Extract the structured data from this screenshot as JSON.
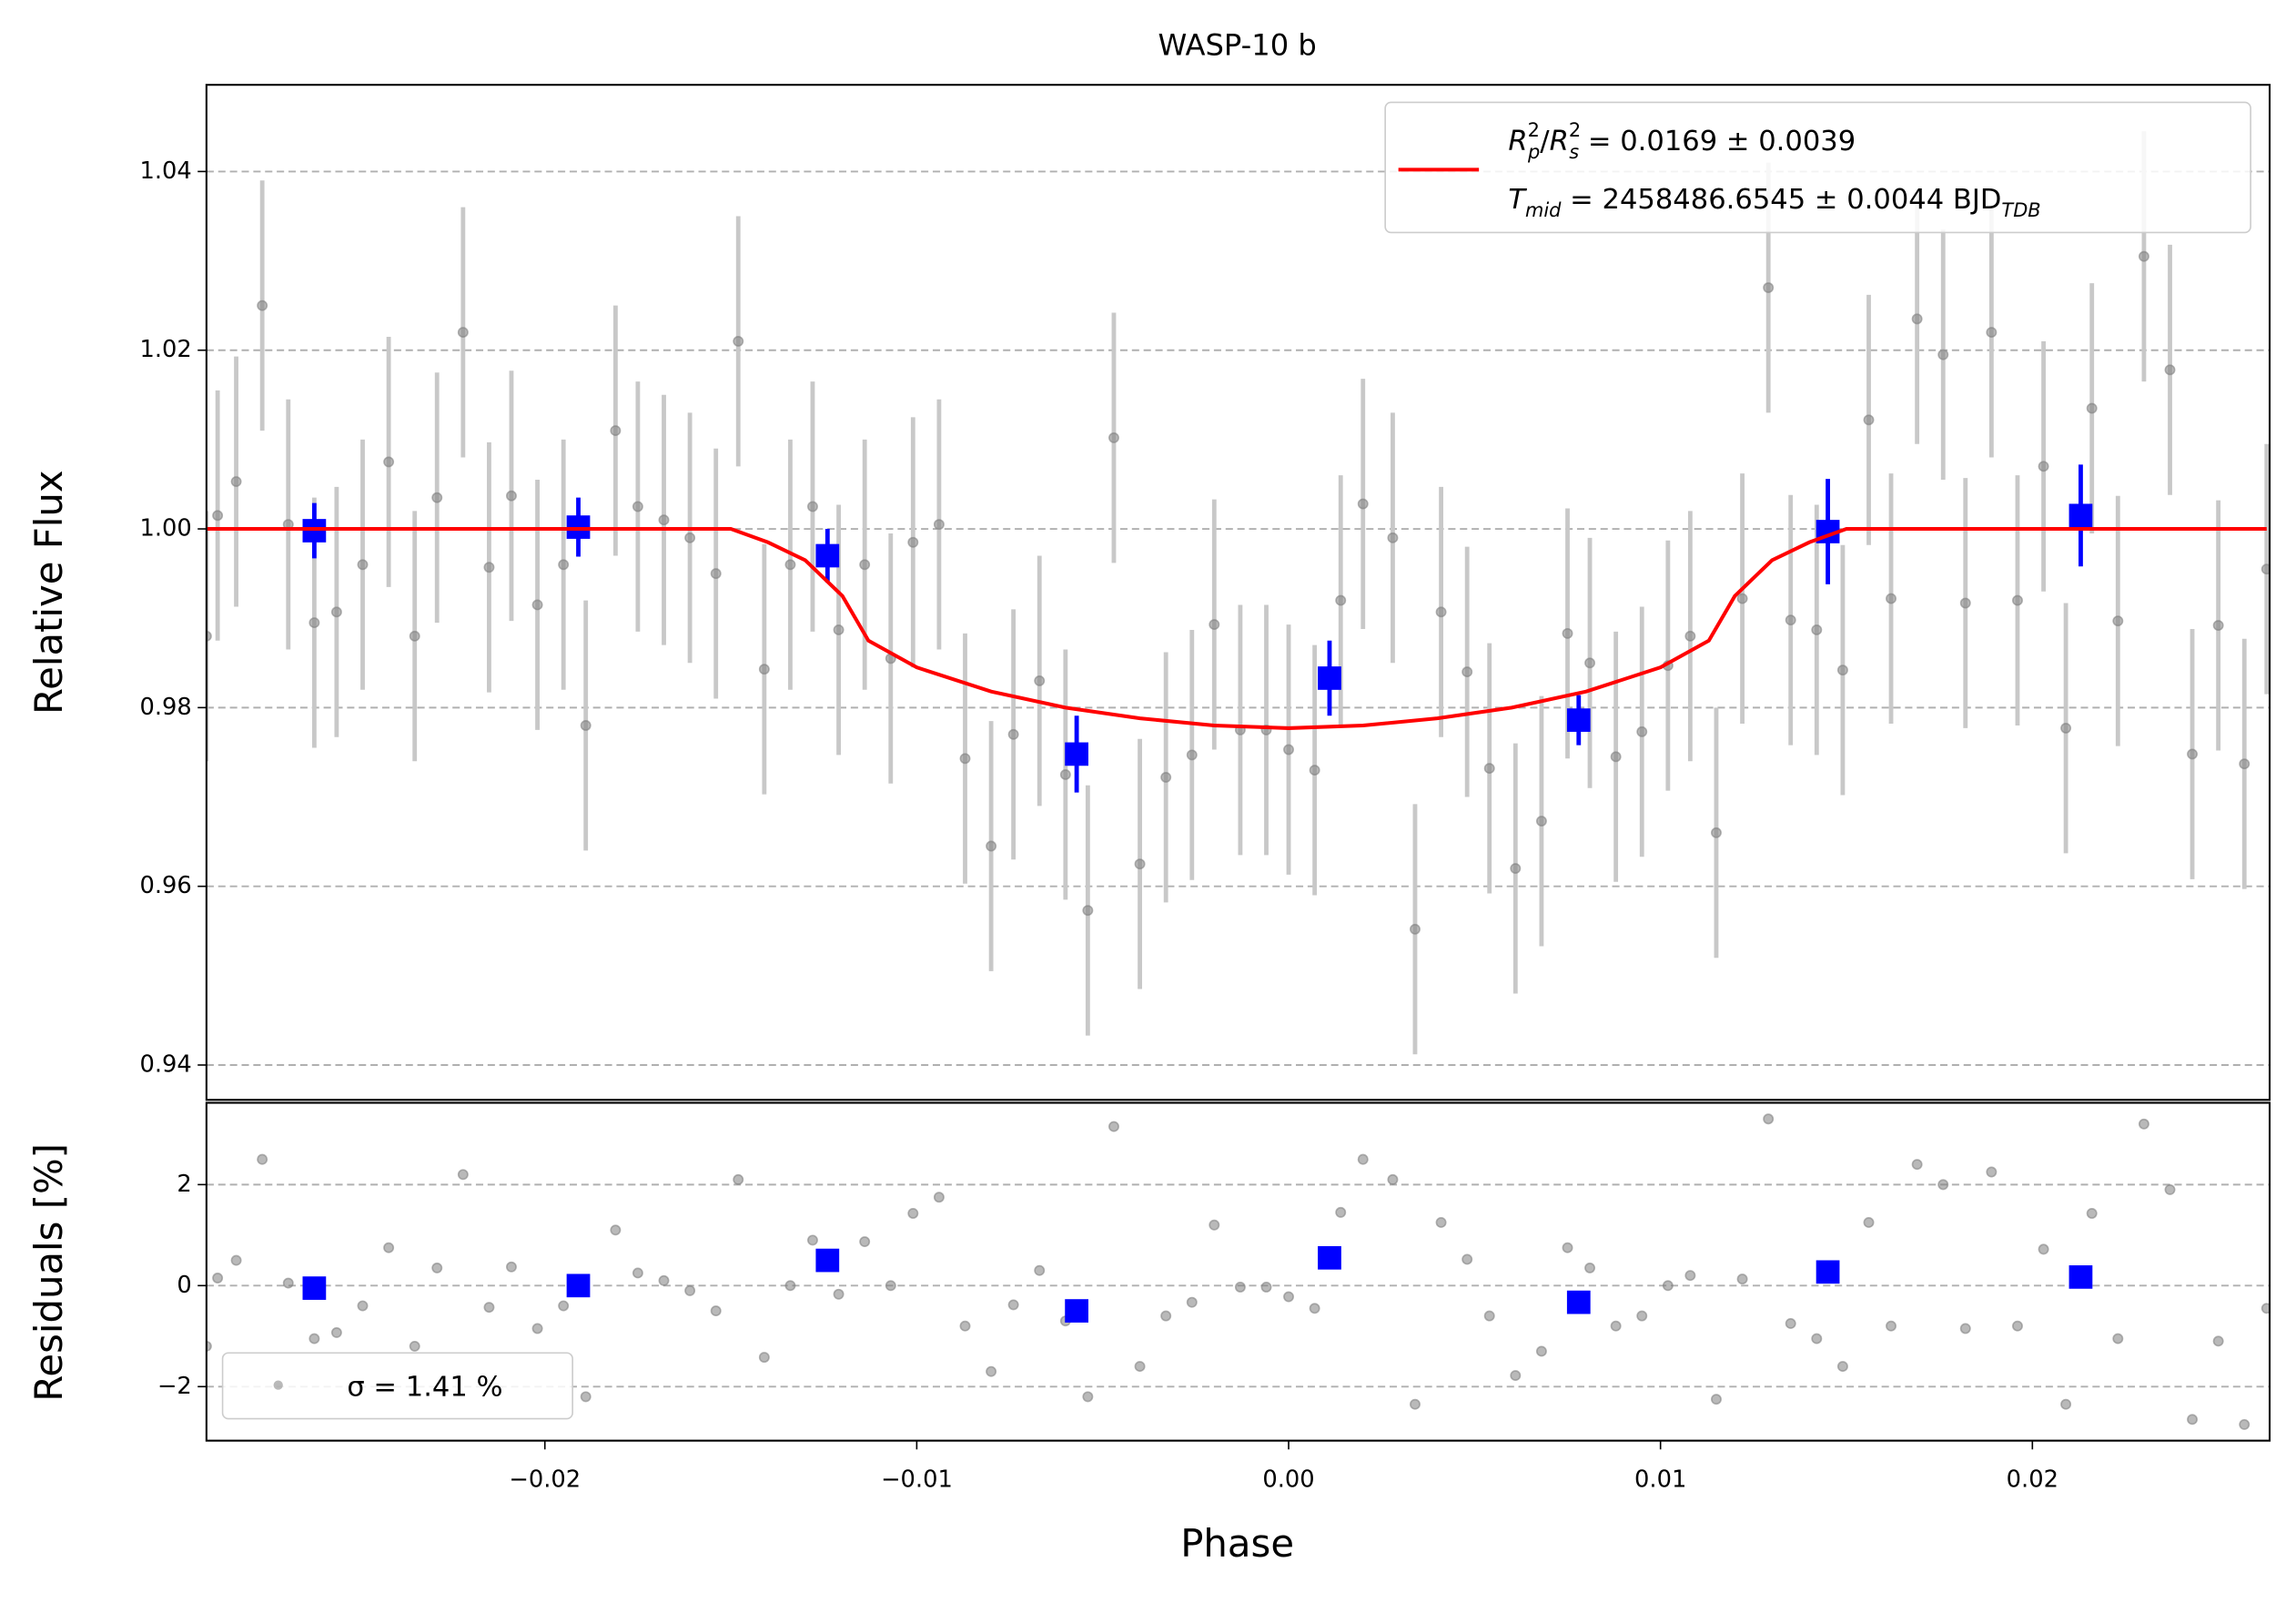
{
  "chart_data": [
    {
      "type": "scatter",
      "title": "WASP-10 b",
      "ylabel": "Relative Flux",
      "xlim": [
        -0.0291,
        0.02638
      ],
      "ylim": [
        0.9361,
        1.0497
      ],
      "yticks": [
        0.94,
        0.96,
        0.98,
        {
          "value": 1,
          "label": "1.00"
        },
        1.02,
        1.04
      ],
      "grid": "y",
      "legend": "upper right",
      "series": [
        {
          "marker": "circle",
          "color": "#808080",
          "error_color": "#c8c8c8",
          "error": 0.014,
          "x": [
            -0.0291,
            -0.0288,
            -0.0283,
            -0.0276,
            -0.0269,
            -0.0262,
            -0.0256,
            -0.0249,
            -0.0242,
            -0.0235,
            -0.0229,
            -0.0222,
            -0.0215,
            -0.0209,
            -0.0202,
            -0.0195,
            -0.0189,
            -0.0181,
            -0.0175,
            -0.0168,
            -0.0161,
            -0.0154,
            -0.0148,
            -0.0141,
            -0.0134,
            -0.0128,
            -0.0121,
            -0.0114,
            -0.0107,
            -0.0101,
            -0.0094,
            -0.0087,
            -0.008,
            -0.0074,
            -0.0067,
            -0.006,
            -0.0054,
            -0.0047,
            -0.004,
            -0.0033,
            -0.0026,
            -0.002,
            -0.0013,
            -0.0006,
            0,
            0.0007,
            0.0014,
            0.002,
            0.0028,
            0.0034,
            0.0041,
            0.0048,
            0.0054,
            0.0061,
            0.0068,
            0.0075,
            0.0081,
            0.0088,
            0.0095,
            0.0102,
            0.0108,
            0.0115,
            0.0122,
            0.0129,
            0.0135,
            0.0142,
            0.0149,
            0.0156,
            0.0162,
            0.0169,
            0.0176,
            0.0182,
            0.0189,
            0.0196,
            0.0203,
            0.0209,
            0.0216,
            0.0223,
            0.023,
            0.0237,
            0.0243,
            0.025,
            0.0257,
            0.0263
          ],
          "values": [
            0.988,
            1.0015,
            1.0053,
            1.025,
            1.0005,
            0.9895,
            0.9907,
            0.996,
            1.0075,
            0.988,
            1.0035,
            1.022,
            0.9957,
            1.0037,
            0.9915,
            0.996,
            0.978,
            1.011,
            1.0025,
            1.001,
            0.999,
            0.995,
            1.021,
            0.9843,
            0.996,
            1.0025,
            0.9887,
            0.996,
            0.9855,
            0.9985,
            1.0005,
            0.9743,
            0.9645,
            0.977,
            0.983,
            0.9725,
            0.9573,
            1.0102,
            0.9625,
            0.9722,
            0.9747,
            0.9893,
            0.9775,
            0.9775,
            0.9753,
            0.973,
            0.992,
            1.0028,
            0.999,
            0.9552,
            0.9907,
            0.984,
            0.9732,
            0.962,
            0.9673,
            0.9883,
            0.985,
            0.9745,
            0.9773,
            0.9847,
            0.988,
            0.966,
            0.9922,
            1.027,
            0.9898,
            0.9887,
            0.9842,
            1.0122,
            0.9922,
            1.0235,
            1.0195,
            0.9917,
            1.022,
            0.992,
            1.007,
            0.9777,
            1.0135,
            0.9897,
            1.0305,
            1.0178,
            0.9748,
            0.9892,
            0.9737,
            0.9955
          ]
        },
        {
          "marker": "square",
          "color": "#0000ff",
          "x": [
            -0.0262,
            -0.0191,
            -0.0124,
            -0.0057,
            0.0011,
            0.0078,
            0.0145,
            0.0213
          ],
          "values": [
            0.9998,
            1.0002,
            0.997,
            0.9748,
            0.9833,
            0.9786,
            0.9997,
            1.0015
          ],
          "errors": [
            0.0031,
            0.0033,
            0.003,
            0.0043,
            0.0042,
            0.0028,
            0.0059,
            0.0057
          ]
        },
        {
          "kind": "line",
          "color": "#ff0000",
          "name_parts": [
            [
              {
                "t": "R",
                "s": "i"
              },
              {
                "t": "2",
                "s": "sup"
              },
              {
                "t": "p",
                "s": "sub"
              },
              {
                "t": "/"
              },
              {
                "t": "R",
                "s": "i"
              },
              {
                "t": "2",
                "s": "sup"
              },
              {
                "t": "s",
                "s": "sub"
              },
              {
                "t": " = 0.0169 ± 0.0039"
              }
            ],
            [
              {
                "t": "T",
                "s": "i"
              },
              {
                "t": "mid",
                "s": "sub"
              },
              {
                "t": " = 2458486.6545 ± 0.0044 BJD"
              },
              {
                "t": "TDB",
                "s": "sub"
              }
            ]
          ],
          "x": [
            -0.0291,
            -0.015,
            -0.014,
            -0.013,
            -0.012,
            -0.0113,
            -0.01,
            -0.008,
            -0.006,
            -0.004,
            -0.002,
            0,
            0.002,
            0.004,
            0.006,
            0.008,
            0.01,
            0.0113,
            0.012,
            0.013,
            0.014,
            0.015,
            0.0263
          ],
          "values": [
            1,
            1,
            0.9985,
            0.9965,
            0.9925,
            0.9875,
            0.9845,
            0.9818,
            0.98,
            0.9788,
            0.978,
            0.9777,
            0.978,
            0.9788,
            0.98,
            0.9818,
            0.9845,
            0.9875,
            0.9925,
            0.9965,
            0.9985,
            1,
            1
          ]
        }
      ]
    },
    {
      "type": "scatter",
      "ylabel": "Residuals [%]",
      "xlabel": "Phase",
      "xlim": [
        -0.0291,
        0.02638
      ],
      "ylim": [
        -3.07,
        3.62
      ],
      "xticks": [
        {
          "value": -0.02,
          "label": "−0.02"
        },
        {
          "value": -0.01,
          "label": "−0.01"
        },
        {
          "value": 0,
          "label": "0.00"
        },
        0.01,
        0.02
      ],
      "yticks": [
        {
          "value": -2,
          "label": "−2"
        },
        0,
        2
      ],
      "grid": "y",
      "legend": "lower left",
      "series": [
        {
          "name": "σ = 1.41 %",
          "marker": "circle",
          "color": "#808080",
          "x": [
            -0.0291,
            -0.0288,
            -0.0283,
            -0.0276,
            -0.0269,
            -0.0262,
            -0.0256,
            -0.0249,
            -0.0242,
            -0.0235,
            -0.0229,
            -0.0222,
            -0.0215,
            -0.0209,
            -0.0202,
            -0.0195,
            -0.0189,
            -0.0181,
            -0.0175,
            -0.0168,
            -0.0161,
            -0.0154,
            -0.0148,
            -0.0141,
            -0.0134,
            -0.0128,
            -0.0121,
            -0.0114,
            -0.0107,
            -0.0101,
            -0.0094,
            -0.0087,
            -0.008,
            -0.0074,
            -0.0067,
            -0.006,
            -0.0054,
            -0.0047,
            -0.004,
            -0.0033,
            -0.0026,
            -0.002,
            -0.0013,
            -0.0006,
            0,
            0.0007,
            0.0014,
            0.002,
            0.0028,
            0.0034,
            0.0041,
            0.0048,
            0.0054,
            0.0061,
            0.0068,
            0.0075,
            0.0081,
            0.0088,
            0.0095,
            0.0102,
            0.0108,
            0.0115,
            0.0122,
            0.0129,
            0.0135,
            0.0142,
            0.0149,
            0.0156,
            0.0162,
            0.0169,
            0.0176,
            0.0182,
            0.0189,
            0.0196,
            0.0203,
            0.0209,
            0.0216,
            0.0223,
            0.023,
            0.0237,
            0.0243,
            0.025,
            0.0257,
            0.0263
          ],
          "values": [
            -1.2,
            0.15,
            0.5,
            2.5,
            0.05,
            -1.05,
            -0.93,
            -0.4,
            0.75,
            -1.2,
            0.35,
            2.2,
            -0.43,
            0.37,
            -0.85,
            -0.4,
            -2.2,
            1.1,
            0.25,
            0.1,
            -0.1,
            -0.5,
            2.1,
            -1.42,
            0,
            0.9,
            -0.17,
            0.87,
            0,
            1.43,
            1.75,
            -0.8,
            -1.7,
            -0.38,
            0.3,
            -0.7,
            -2.2,
            3.15,
            -1.6,
            -0.6,
            -0.33,
            1.2,
            -0.03,
            -0.03,
            -0.22,
            -0.45,
            1.45,
            2.5,
            2.1,
            -2.35,
            1.25,
            0.52,
            -0.6,
            -1.78,
            -1.3,
            0.75,
            0.35,
            -0.8,
            -0.6,
            0,
            0.2,
            -2.25,
            0.13,
            3.3,
            -0.75,
            -1.05,
            -1.6,
            1.25,
            -0.8,
            2.4,
            2,
            -0.85,
            2.25,
            -0.8,
            0.72,
            -2.35,
            1.43,
            -1.05,
            3.2,
            1.9,
            -2.65,
            -1.1,
            -2.75,
            -0.45
          ]
        },
        {
          "marker": "square",
          "color": "#0000ff",
          "x": [
            -0.0262,
            -0.0191,
            -0.0124,
            -0.0057,
            0.0011,
            0.0078,
            0.0145,
            0.0213
          ],
          "values": [
            -0.05,
            0,
            0.5,
            -0.5,
            0.55,
            -0.33,
            0.27,
            0.17
          ]
        }
      ]
    }
  ]
}
